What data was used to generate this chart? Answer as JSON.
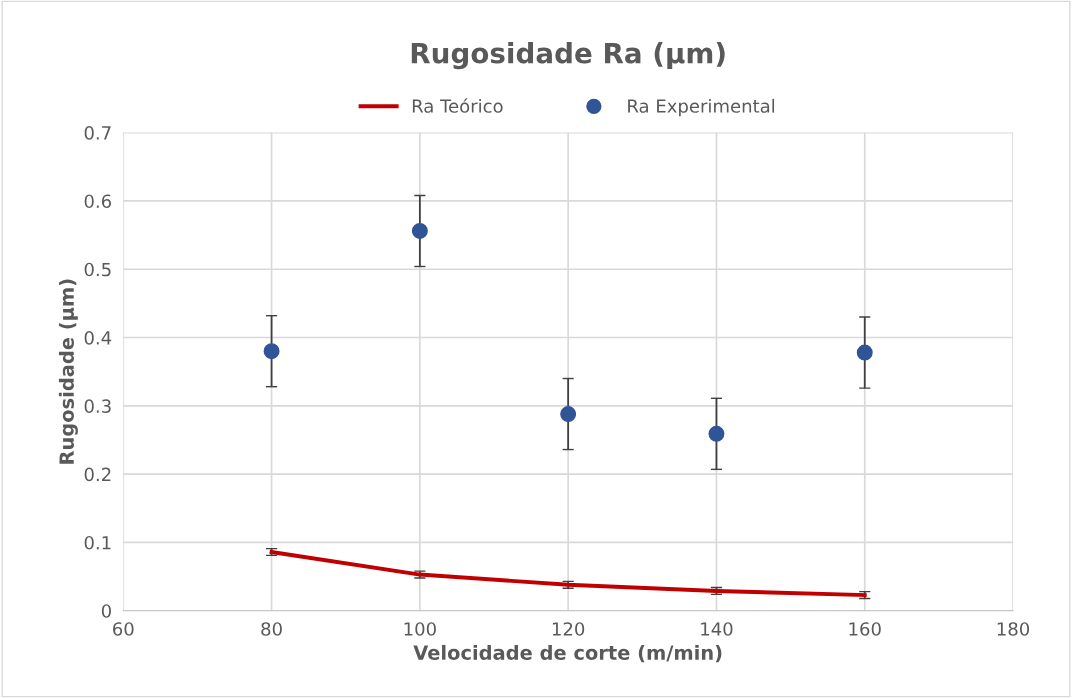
{
  "chart_data": {
    "type": "scatter",
    "title": "Rugosidade Ra (µm)",
    "xlabel": "Velocidade de corte (m/min)",
    "ylabel": "Rugosidade (µm)",
    "x": [
      80,
      100,
      120,
      140,
      160
    ],
    "series": [
      {
        "name": "Ra Teórico",
        "type": "line",
        "color": "#c00000",
        "values": [
          0.086,
          0.053,
          0.038,
          0.029,
          0.023
        ],
        "errors": [
          0.005,
          0.005,
          0.005,
          0.005,
          0.005
        ],
        "marker": "none"
      },
      {
        "name": "Ra Experimental",
        "color": "#2f5597",
        "values": [
          0.38,
          0.556,
          0.288,
          0.259,
          0.378
        ],
        "errors": [
          0.052,
          0.052,
          0.052,
          0.052,
          0.052
        ],
        "marker": "circle"
      }
    ],
    "xlim": [
      60,
      180
    ],
    "xticks": [
      60,
      80,
      100,
      120,
      140,
      160,
      180
    ],
    "ylim": [
      0,
      0.7
    ],
    "yticks": [
      0,
      0.1,
      0.2,
      0.3,
      0.4,
      0.5,
      0.6,
      0.7
    ],
    "grid": true,
    "legend": "top"
  }
}
